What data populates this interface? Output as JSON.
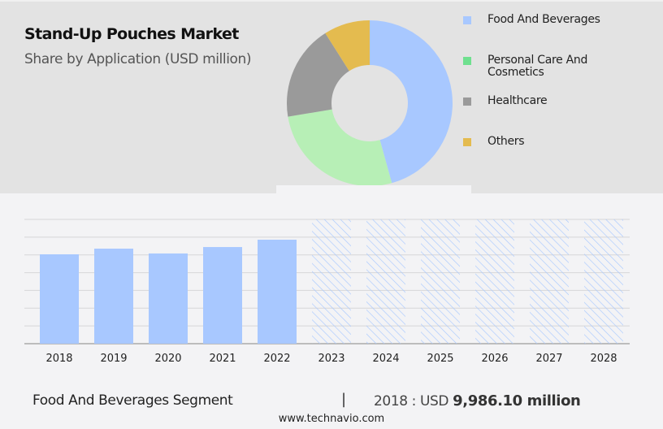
{
  "header": {
    "title": "Stand-Up Pouches Market",
    "subtitle": "Share by Application (USD million)"
  },
  "colors": {
    "food": "#a8c8ff",
    "personal": "#b7efb6",
    "personal_legend": "#6fe08f",
    "healthcare": "#9a9a9a",
    "others": "#e4bb4f",
    "forecast_hatch": "#a8c8ff",
    "grid": "#d6d6d8"
  },
  "legend": [
    {
      "label": "Food And Beverages",
      "color": "#a8c8ff"
    },
    {
      "label": "Personal Care And Cosmetics",
      "color": "#6fe08f"
    },
    {
      "label": "Healthcare",
      "color": "#9a9a9a"
    },
    {
      "label": "Others",
      "color": "#e4bb4f"
    }
  ],
  "chart_data": [
    {
      "type": "pie",
      "donut": true,
      "slices": [
        {
          "name": "Food And Beverages",
          "share": 45.7,
          "color": "#a8c8ff"
        },
        {
          "name": "Personal Care And Cosmetics",
          "share": 26.7,
          "color": "#b7efb6"
        },
        {
          "name": "Healthcare",
          "share": 18.6,
          "color": "#9a9a9a"
        },
        {
          "name": "Others",
          "share": 9.0,
          "color": "#e4bb4f"
        }
      ]
    },
    {
      "type": "bar",
      "series_name": "Food And Beverages Segment",
      "categories": [
        "2018",
        "2019",
        "2020",
        "2021",
        "2022",
        "2023",
        "2024",
        "2025",
        "2026",
        "2027",
        "2028"
      ],
      "values": [
        9986.1,
        10620,
        10080,
        10800,
        11620,
        null,
        null,
        null,
        null,
        null,
        null
      ],
      "forecast_from": "2023",
      "ylim": [
        0,
        13890
      ],
      "grid": true,
      "y_tick_labels": false
    }
  ],
  "footer": {
    "segment": "Food And Beverages Segment",
    "separator": "|",
    "year_label": "2018 : USD",
    "value": "9,986.10 million",
    "site": "www.technavio.com"
  }
}
